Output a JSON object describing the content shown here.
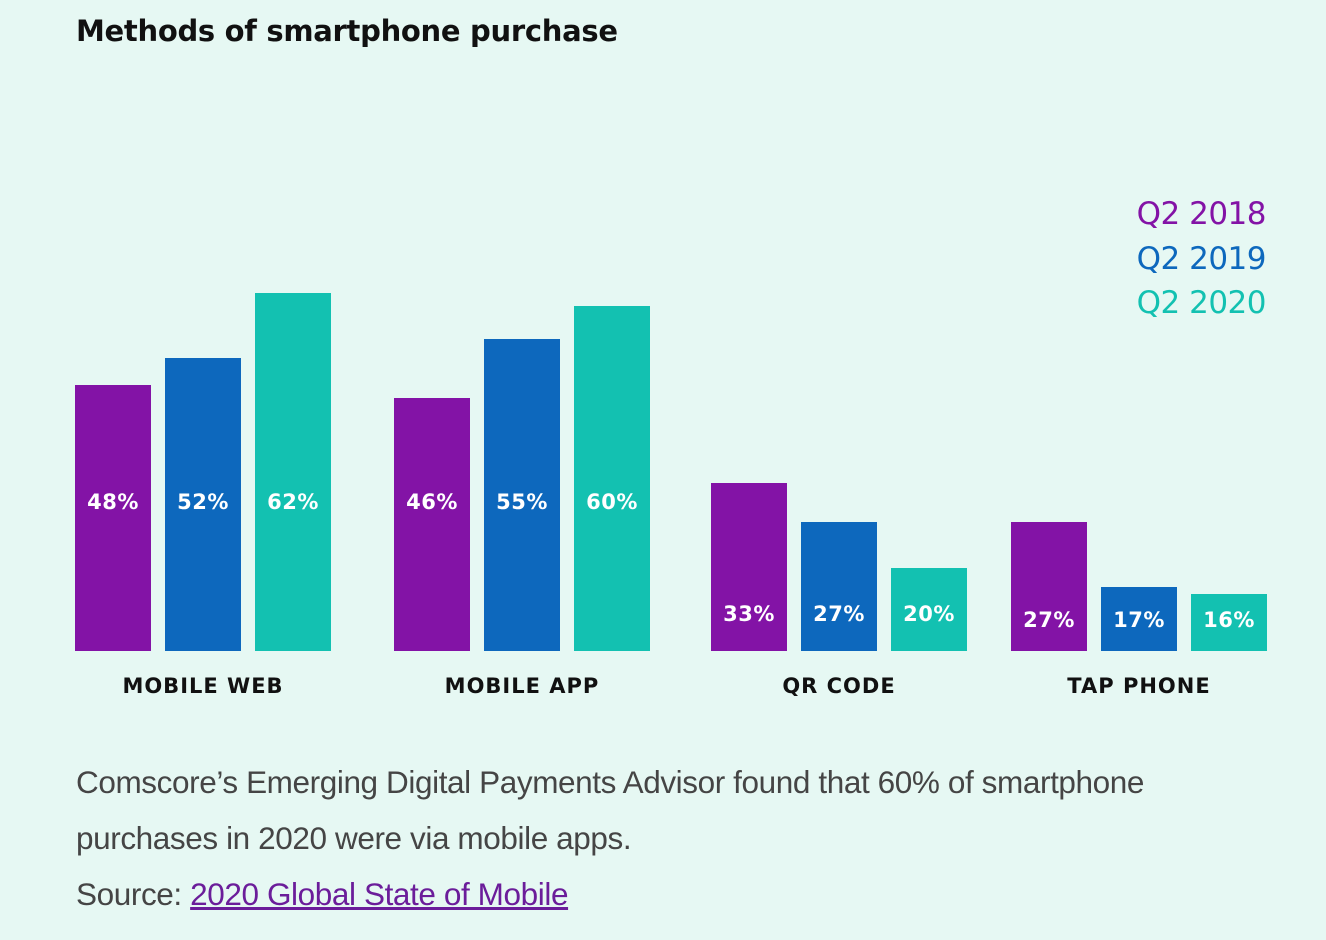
{
  "chart_data": {
    "type": "bar",
    "title": "Methods of smartphone purchase",
    "categories": [
      "MOBILE WEB",
      "MOBILE APP",
      "QR CODE",
      "TAP PHONE"
    ],
    "series": [
      {
        "name": "Q2 2018",
        "color": "#8313a6",
        "values": [
          48,
          46,
          33,
          27
        ]
      },
      {
        "name": "Q2 2019",
        "color": "#0d68bd",
        "values": [
          52,
          55,
          27,
          17
        ]
      },
      {
        "name": "Q2 2020",
        "color": "#13c1b1",
        "values": [
          62,
          60,
          20,
          16
        ]
      }
    ],
    "value_suffix": "%",
    "xlabel": "",
    "ylabel": "",
    "grid": false,
    "legend_position": "top-right"
  },
  "caption": {
    "text": "Comscore’s Emerging Digital Payments Advisor found that 60% of smartphone purchases in 2020 were via mobile apps.",
    "source_prefix": "Source: ",
    "source_link": "2020 Global State of Mobile"
  }
}
